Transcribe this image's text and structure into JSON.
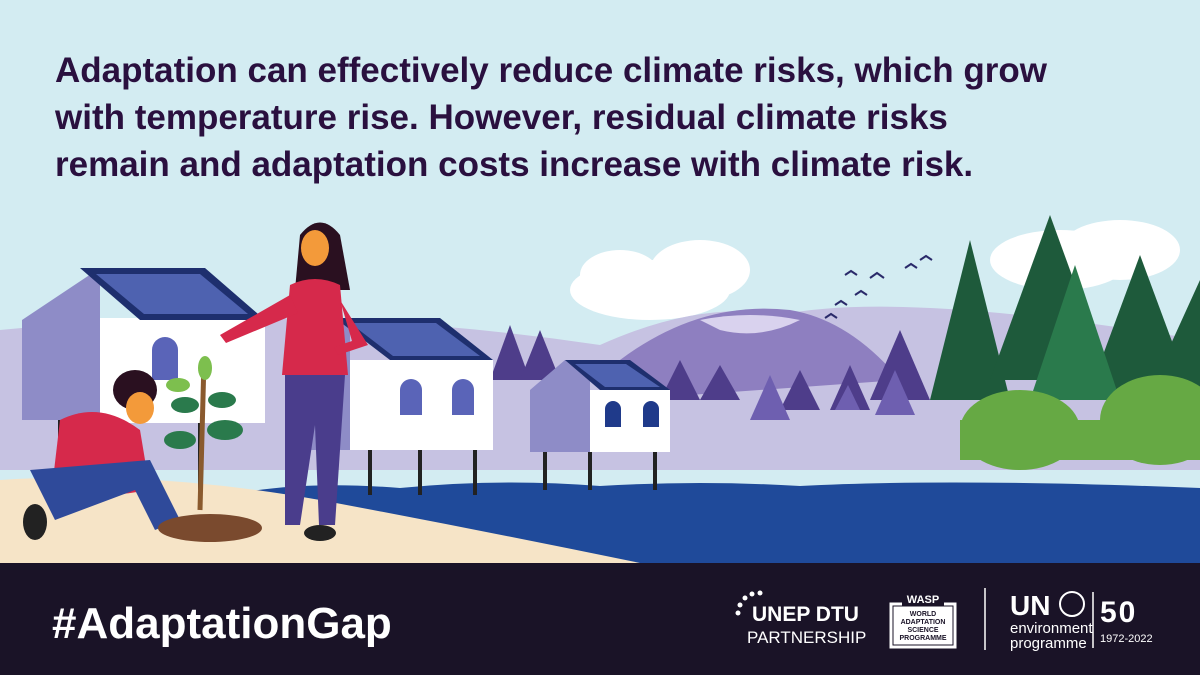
{
  "headline": {
    "lines": [
      "Adaptation can effectively reduce climate risks, which grow",
      "with temperature rise. However, residual climate risks",
      "remain and adaptation costs increase with climate risk."
    ]
  },
  "footer": {
    "hashtag": "#AdaptationGap",
    "logos": {
      "unep_dtu": {
        "name": "UNEP DTU",
        "sub": "PARTNERSHIP"
      },
      "wasp": {
        "name": "WASP",
        "lines": [
          "WORLD",
          "ADAPTATION",
          "SCIENCE",
          "PROGRAMME"
        ]
      },
      "un": {
        "name": "UN",
        "lines": [
          "environment",
          "programme"
        ],
        "anniversary": "50",
        "years": "1972-2022"
      }
    }
  }
}
